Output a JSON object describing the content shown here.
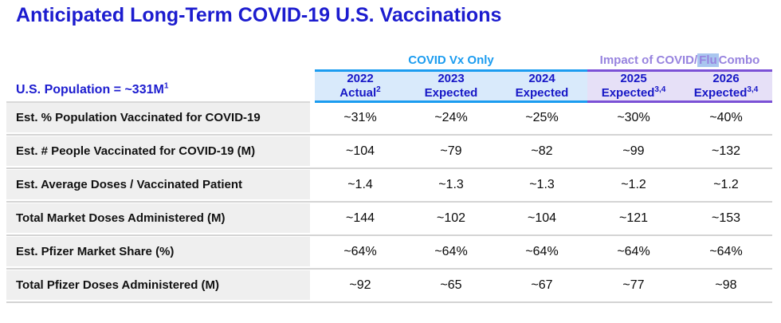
{
  "title": "Anticipated Long-Term COVID-19 U.S. Vaccinations",
  "table": {
    "population_label": {
      "text": "U.S. Population = ~331M",
      "sup": "1"
    },
    "groups": {
      "covid_vx_only": {
        "label": "COVID Vx Only"
      },
      "covid_flu_combo": {
        "prefix": "Impact of COVID/",
        "highlight": "Flu",
        "suffix": " Combo"
      }
    },
    "columns": [
      {
        "year": "2022",
        "status": "Actual",
        "sup": "2"
      },
      {
        "year": "2023",
        "status": "Expected",
        "sup": ""
      },
      {
        "year": "2024",
        "status": "Expected",
        "sup": ""
      },
      {
        "year": "2025",
        "status": "Expected",
        "sup": "3,4"
      },
      {
        "year": "2026",
        "status": "Expected",
        "sup": "3,4"
      }
    ],
    "rows": [
      {
        "label": "Est. % Population Vaccinated for COVID-19",
        "values": [
          "~31%",
          "~24%",
          "~25%",
          "~30%",
          "~40%"
        ]
      },
      {
        "label": "Est. # People Vaccinated for COVID-19 (M)",
        "values": [
          "~104",
          "~79",
          "~82",
          "~99",
          "~132"
        ]
      },
      {
        "label": "Est. Average Doses / Vaccinated Patient",
        "values": [
          "~1.4",
          "~1.3",
          "~1.3",
          "~1.2",
          "~1.2"
        ]
      },
      {
        "label": "Total Market Doses Administered (M)",
        "values": [
          "~144",
          "~102",
          "~104",
          "~121",
          "~153"
        ]
      },
      {
        "label": "Est. Pfizer Market Share (%)",
        "values": [
          "~64%",
          "~64%",
          "~64%",
          "~64%",
          "~64%"
        ]
      },
      {
        "label": "Total Pfizer Doses Administered (M)",
        "values": [
          "~92",
          "~65",
          "~67",
          "~77",
          "~98"
        ]
      }
    ]
  },
  "colors": {
    "title_blue": "#1C1CCF",
    "header_navy": "#1717C6",
    "accent_cyan": "#1B9CF0",
    "light_blue_bg": "#D9EAFB",
    "accent_purple_text": "#9783DF",
    "accent_purple_line": "#7B51D6",
    "light_purple_bg": "#E6E0F7",
    "flu_highlight": "#A9C6EF",
    "label_gray": "#EFEFEF"
  }
}
